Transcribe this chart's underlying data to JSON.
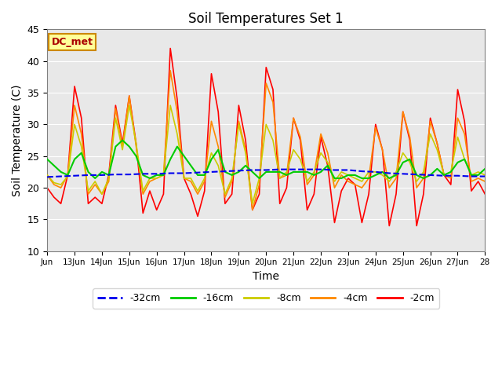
{
  "title": "Soil Temperatures Set 1",
  "xlabel": "Time",
  "ylabel": "Soil Temperature (C)",
  "ylim": [
    10,
    45
  ],
  "xlim": [
    0,
    16
  ],
  "plot_bg_color": "#e8e8e8",
  "annotation_text": "DC_met",
  "annotation_fg": "#aa0000",
  "annotation_bg": "#ffff99",
  "annotation_border": "#cc8800",
  "legend_labels": [
    "-32cm",
    "-16cm",
    "-8cm",
    "-4cm",
    "-2cm"
  ],
  "line_colors": [
    "#0000ee",
    "#00cc00",
    "#cccc00",
    "#ff8800",
    "#ff0000"
  ],
  "yticks": [
    10,
    15,
    20,
    25,
    30,
    35,
    40,
    45
  ],
  "xtick_labels": [
    "Jun",
    "13Jun",
    "14Jun",
    "15Jun",
    "16Jun",
    "17Jun",
    "18Jun",
    "19Jun",
    "20Jun",
    "21Jun",
    "22Jun",
    "23Jun",
    "24Jun",
    "25Jun",
    "26Jun",
    "27Jun",
    "28"
  ],
  "t_32cm": [
    0.0,
    0.5,
    1.0,
    1.5,
    2.0,
    2.5,
    3.0,
    3.5,
    4.0,
    4.5,
    5.0,
    5.5,
    6.0,
    6.5,
    7.0,
    7.5,
    8.0,
    8.5,
    9.0,
    9.5,
    10.0,
    10.5,
    11.0,
    11.5,
    12.0,
    12.5,
    13.0,
    13.5,
    14.0,
    14.5,
    15.0,
    15.5,
    16.0
  ],
  "y_32cm": [
    21.7,
    21.8,
    21.9,
    22.0,
    22.0,
    22.1,
    22.1,
    22.2,
    22.2,
    22.3,
    22.3,
    22.4,
    22.5,
    22.6,
    22.7,
    22.8,
    22.8,
    22.9,
    22.9,
    22.9,
    22.9,
    22.8,
    22.8,
    22.6,
    22.5,
    22.3,
    22.2,
    22.1,
    22.0,
    21.9,
    21.9,
    21.8,
    21.8
  ],
  "t_2cm": [
    0.0,
    0.25,
    0.5,
    0.75,
    1.0,
    1.25,
    1.5,
    1.75,
    2.0,
    2.25,
    2.5,
    2.75,
    3.0,
    3.25,
    3.5,
    3.75,
    4.0,
    4.25,
    4.5,
    4.75,
    5.0,
    5.25,
    5.5,
    5.75,
    6.0,
    6.25,
    6.5,
    6.75,
    7.0,
    7.25,
    7.5,
    7.75,
    8.0,
    8.25,
    8.5,
    8.75,
    9.0,
    9.25,
    9.5,
    9.75,
    10.0,
    10.25,
    10.5,
    10.75,
    11.0,
    11.25,
    11.5,
    11.75,
    12.0,
    12.25,
    12.5,
    12.75,
    13.0,
    13.25,
    13.5,
    13.75,
    14.0,
    14.25,
    14.5,
    14.75,
    15.0,
    15.25,
    15.5,
    15.75,
    16.0
  ],
  "y_2cm": [
    20.0,
    18.5,
    17.5,
    22.0,
    36.0,
    31.0,
    17.5,
    18.5,
    17.5,
    22.0,
    33.0,
    27.0,
    34.5,
    27.0,
    16.0,
    19.5,
    16.5,
    19.0,
    42.0,
    34.0,
    21.5,
    19.0,
    15.5,
    19.5,
    38.0,
    32.0,
    17.5,
    19.0,
    33.0,
    27.5,
    16.5,
    19.0,
    39.0,
    35.5,
    17.5,
    20.0,
    31.0,
    27.5,
    16.5,
    19.0,
    28.0,
    23.5,
    14.5,
    19.5,
    21.5,
    20.5,
    14.5,
    19.0,
    30.0,
    26.0,
    14.0,
    19.0,
    32.0,
    27.5,
    14.0,
    19.0,
    31.0,
    27.0,
    22.0,
    20.5,
    35.5,
    30.5,
    19.5,
    21.0,
    19.0
  ],
  "y_4cm": [
    22.0,
    20.5,
    20.0,
    22.0,
    33.0,
    28.5,
    19.0,
    20.5,
    19.0,
    21.0,
    32.5,
    26.5,
    34.5,
    26.5,
    19.0,
    21.0,
    21.5,
    22.0,
    38.5,
    32.0,
    21.5,
    21.0,
    19.0,
    21.0,
    30.5,
    26.5,
    18.5,
    21.0,
    30.5,
    26.0,
    16.5,
    20.5,
    36.5,
    33.5,
    21.5,
    22.0,
    31.0,
    28.0,
    20.5,
    22.0,
    28.5,
    25.5,
    20.0,
    22.0,
    21.0,
    20.5,
    20.0,
    21.5,
    29.5,
    26.0,
    20.0,
    21.5,
    32.0,
    28.0,
    20.0,
    21.5,
    30.5,
    27.0,
    22.0,
    21.5,
    31.0,
    28.5,
    21.0,
    21.5,
    21.0
  ],
  "y_8cm": [
    22.0,
    20.8,
    20.5,
    21.8,
    30.0,
    26.5,
    19.5,
    21.0,
    19.0,
    21.5,
    31.0,
    26.0,
    33.0,
    27.0,
    19.5,
    21.5,
    21.5,
    22.0,
    33.0,
    28.5,
    21.5,
    21.5,
    19.5,
    21.5,
    25.5,
    23.5,
    19.0,
    21.5,
    30.0,
    25.5,
    17.5,
    21.5,
    30.0,
    27.5,
    21.5,
    22.5,
    26.0,
    24.5,
    21.0,
    22.5,
    25.5,
    24.0,
    21.0,
    22.5,
    22.0,
    21.5,
    21.0,
    22.5,
    22.5,
    22.0,
    21.0,
    22.5,
    25.5,
    24.0,
    21.0,
    22.5,
    28.5,
    26.0,
    22.0,
    22.5,
    28.0,
    24.5,
    22.0,
    22.5,
    22.0
  ],
  "y_16cm": [
    24.5,
    23.5,
    22.5,
    22.0,
    24.5,
    25.5,
    22.5,
    21.5,
    22.5,
    22.0,
    26.5,
    27.5,
    26.5,
    25.0,
    22.0,
    21.5,
    22.0,
    22.0,
    24.5,
    26.5,
    25.0,
    23.5,
    22.0,
    22.0,
    24.5,
    26.0,
    22.5,
    22.0,
    22.5,
    23.5,
    22.5,
    21.5,
    22.5,
    22.5,
    22.5,
    22.0,
    22.5,
    22.5,
    22.5,
    22.0,
    22.5,
    23.5,
    21.5,
    21.5,
    22.0,
    22.0,
    21.5,
    21.5,
    22.0,
    22.5,
    21.5,
    22.0,
    24.0,
    24.5,
    22.0,
    21.5,
    22.0,
    23.0,
    22.0,
    22.5,
    24.0,
    24.5,
    22.0,
    22.0,
    23.0
  ]
}
